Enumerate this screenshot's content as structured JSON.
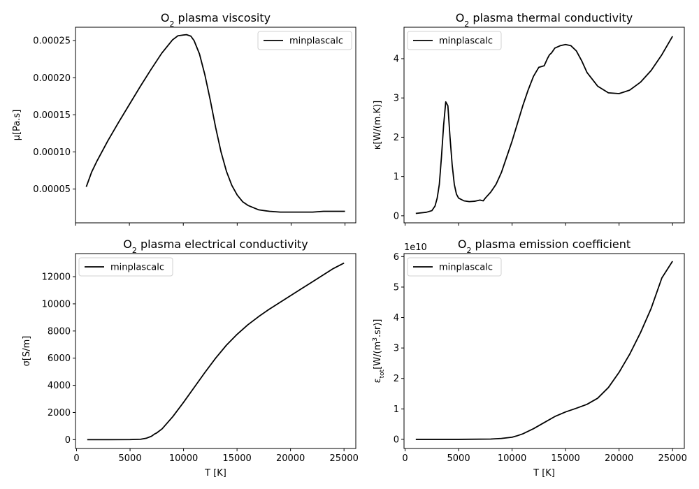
{
  "chart_data": [
    {
      "type": "line",
      "title": "O",
      "title_sub": "2",
      "title_rest": " plasma viscosity",
      "xlabel": "",
      "ylabel": "μ[Pa.s]",
      "xlim": [
        0,
        26000
      ],
      "ylim": [
        4.5e-06,
        0.000268
      ],
      "xticks": [
        0,
        5000,
        10000,
        15000,
        20000,
        25000
      ],
      "xtick_labels": [],
      "yticks": [
        5e-05,
        0.0001,
        0.00015,
        0.0002,
        0.00025
      ],
      "ytick_labels": [
        "0.00005",
        "0.00010",
        "0.00015",
        "0.00020",
        "0.00025"
      ],
      "legend": {
        "position": "top-right",
        "entries": [
          "minplascalc"
        ]
      },
      "series": [
        {
          "name": "minplascalc",
          "color": "#000000",
          "x": [
            1000,
            1500,
            2000,
            3000,
            4000,
            5000,
            6000,
            7000,
            8000,
            9000,
            9500,
            10000,
            10300,
            10700,
            11000,
            11500,
            12000,
            12500,
            13000,
            13500,
            14000,
            14500,
            15000,
            15500,
            16000,
            17000,
            18000,
            19000,
            20000,
            21000,
            22000,
            23000,
            24000,
            25000
          ],
          "y": [
            5.3e-05,
            7.3e-05,
            8.8e-05,
            0.000115,
            0.00014,
            0.000164,
            0.000188,
            0.000211,
            0.000233,
            0.000251,
            0.0002565,
            0.0002575,
            0.000258,
            0.000256,
            0.00025,
            0.000232,
            0.000204,
            0.00017,
            0.000133,
            0.0001,
            7.4e-05,
            5.5e-05,
            4.2e-05,
            3.3e-05,
            2.8e-05,
            2.2e-05,
            2e-05,
            1.9e-05,
            1.9e-05,
            1.9e-05,
            1.9e-05,
            2e-05,
            2e-05,
            2e-05
          ]
        }
      ]
    },
    {
      "type": "line",
      "title": "O",
      "title_sub": "2",
      "title_rest": " plasma thermal conductivity",
      "xlabel": "",
      "ylabel": "κ[W/(m.K)]",
      "xlim": [
        -100,
        26100
      ],
      "ylim": [
        -0.18,
        4.8
      ],
      "xticks": [
        0,
        5000,
        10000,
        15000,
        20000,
        25000
      ],
      "xtick_labels": [],
      "yticks": [
        0,
        1,
        2,
        3,
        4
      ],
      "ytick_labels": [
        "0",
        "1",
        "2",
        "3",
        "4"
      ],
      "legend": {
        "position": "top-left",
        "entries": [
          "minplascalc"
        ]
      },
      "series": [
        {
          "name": "minplascalc",
          "color": "#000000",
          "x": [
            1000,
            2000,
            2500,
            2800,
            3000,
            3200,
            3400,
            3600,
            3800,
            4000,
            4200,
            4400,
            4600,
            4800,
            5000,
            5500,
            6000,
            6500,
            7000,
            7300,
            7500,
            8000,
            8500,
            9000,
            9500,
            10000,
            10500,
            11000,
            11500,
            12000,
            12500,
            13000,
            13300,
            13500,
            13700,
            14000,
            14500,
            15000,
            15500,
            16000,
            16500,
            17000,
            18000,
            19000,
            20000,
            21000,
            22000,
            23000,
            24000,
            25000
          ],
          "y": [
            0.06,
            0.09,
            0.13,
            0.25,
            0.45,
            0.8,
            1.5,
            2.3,
            2.9,
            2.8,
            2.0,
            1.3,
            0.8,
            0.55,
            0.45,
            0.38,
            0.36,
            0.37,
            0.4,
            0.38,
            0.45,
            0.6,
            0.8,
            1.1,
            1.5,
            1.9,
            2.35,
            2.8,
            3.2,
            3.55,
            3.78,
            3.82,
            4.0,
            4.1,
            4.15,
            4.27,
            4.33,
            4.36,
            4.33,
            4.2,
            3.95,
            3.65,
            3.3,
            3.13,
            3.11,
            3.2,
            3.4,
            3.7,
            4.1,
            4.57
          ]
        }
      ]
    },
    {
      "type": "line",
      "title": "O",
      "title_sub": "2",
      "title_rest": " plasma electrical conductivity",
      "xlabel": "T [K]",
      "ylabel": "σ[S/m]",
      "xlim": [
        -100,
        26100
      ],
      "ylim": [
        -650,
        13700
      ],
      "xticks": [
        0,
        5000,
        10000,
        15000,
        20000,
        25000
      ],
      "xtick_labels": [
        "0",
        "5000",
        "10000",
        "15000",
        "20000",
        "25000"
      ],
      "yticks": [
        0,
        2000,
        4000,
        6000,
        8000,
        10000,
        12000
      ],
      "ytick_labels": [
        "0",
        "2000",
        "4000",
        "6000",
        "8000",
        "10000",
        "12000"
      ],
      "legend": {
        "position": "top-left",
        "entries": [
          "minplascalc"
        ]
      },
      "series": [
        {
          "name": "minplascalc",
          "color": "#000000",
          "x": [
            1000,
            3000,
            5000,
            6000,
            6500,
            7000,
            7300,
            7500,
            8000,
            9000,
            10000,
            11000,
            12000,
            13000,
            14000,
            15000,
            16000,
            17000,
            18000,
            19000,
            20000,
            21000,
            22000,
            23000,
            24000,
            25000
          ],
          "y": [
            0,
            0,
            5,
            30,
            100,
            250,
            420,
            500,
            800,
            1700,
            2750,
            3850,
            4950,
            6000,
            6950,
            7750,
            8450,
            9050,
            9600,
            10100,
            10600,
            11100,
            11600,
            12100,
            12600,
            13000
          ]
        }
      ]
    },
    {
      "type": "line",
      "title": "O",
      "title_sub": "2",
      "title_rest": " plasma emission coefficient",
      "xlabel": "T [K]",
      "ylabel": "ε",
      "ylabel_sub": "tot",
      "ylabel_rest": "[W/(m",
      "ylabel_sup": "3",
      "ylabel_end": ".sr)]",
      "offset_text": "1e10",
      "xlim": [
        -100,
        26100
      ],
      "ylim": [
        -0.3,
        6.1
      ],
      "xticks": [
        0,
        5000,
        10000,
        15000,
        20000,
        25000
      ],
      "xtick_labels": [
        "0",
        "5000",
        "10000",
        "15000",
        "20000",
        "25000"
      ],
      "yticks": [
        0,
        1,
        2,
        3,
        4,
        5,
        6
      ],
      "ytick_labels": [
        "0",
        "1",
        "2",
        "3",
        "4",
        "5",
        "6"
      ],
      "legend": {
        "position": "top-left",
        "entries": [
          "minplascalc"
        ]
      },
      "series": [
        {
          "name": "minplascalc",
          "color": "#000000",
          "x": [
            1000,
            5000,
            8000,
            9000,
            10000,
            10500,
            11000,
            12000,
            13000,
            14000,
            15000,
            16000,
            17000,
            18000,
            19000,
            20000,
            21000,
            22000,
            23000,
            24000,
            25000
          ],
          "y": [
            0,
            0,
            0.01,
            0.03,
            0.07,
            0.12,
            0.18,
            0.35,
            0.55,
            0.75,
            0.9,
            1.02,
            1.15,
            1.35,
            1.7,
            2.2,
            2.8,
            3.5,
            4.3,
            5.3,
            5.85
          ]
        }
      ]
    }
  ]
}
